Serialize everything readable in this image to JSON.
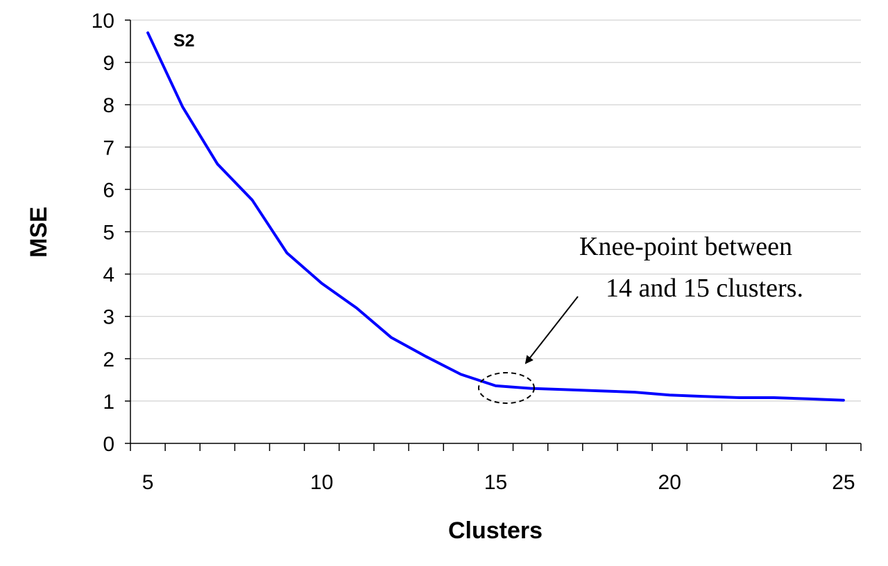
{
  "chart_data": {
    "type": "line",
    "xlabel": "Clusters",
    "ylabel": "MSE",
    "xlim": [
      4.5,
      25.5
    ],
    "ylim": [
      0,
      10
    ],
    "x_ticks": [
      5,
      10,
      15,
      20,
      25
    ],
    "y_ticks": [
      0,
      1,
      2,
      3,
      4,
      5,
      6,
      7,
      8,
      9,
      10
    ],
    "grid": "horizontal",
    "series_label": "S2",
    "series": [
      {
        "color": "#0000ff",
        "x": [
          5,
          6,
          7,
          8,
          9,
          10,
          11,
          12,
          13,
          14,
          15,
          16,
          17,
          18,
          19,
          20,
          21,
          22,
          23,
          24,
          25
        ],
        "y": [
          9.7,
          7.95,
          6.6,
          5.75,
          4.5,
          3.78,
          3.2,
          2.5,
          2.05,
          1.63,
          1.36,
          1.3,
          1.27,
          1.24,
          1.21,
          1.14,
          1.11,
          1.08,
          1.08,
          1.05,
          1.02
        ]
      }
    ],
    "annotation": {
      "lines": [
        "Knee-point between",
        "14 and 15 clusters."
      ]
    }
  }
}
